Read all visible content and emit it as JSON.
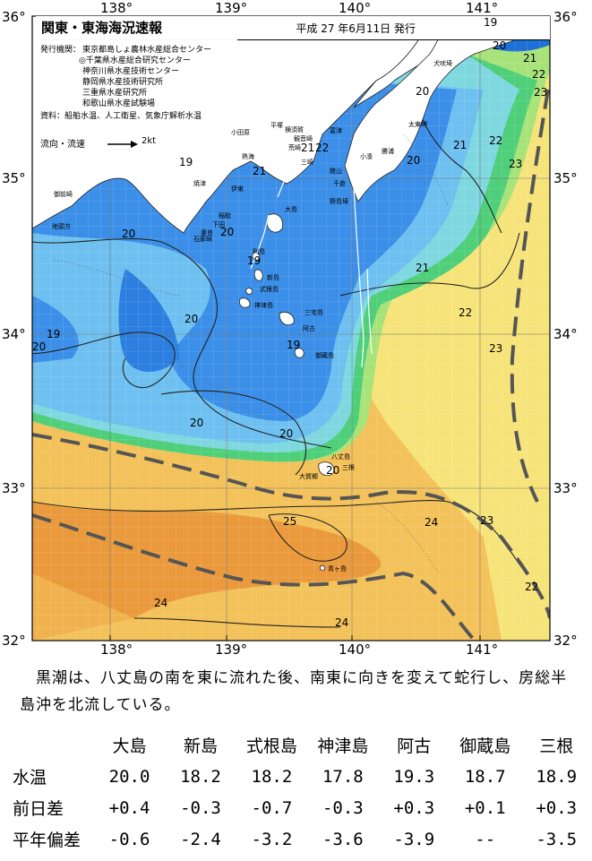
{
  "header": {
    "title": "関東・東海海況速報",
    "date": "平成 27 年6月11日 発行"
  },
  "info": {
    "issuer_label": "発行機関：",
    "issuers": [
      "東京都島しょ農林水産総合センター",
      "◎千葉県水産総合研究センター",
      "神奈川県水産技術センター",
      "静岡県水産技術研究所",
      "三重県水産研究所",
      "和歌山県水産試験場"
    ],
    "source": "資料：船舶水温、人工衛星、気象庁解析水温",
    "legend_label": "流向・流速",
    "legend_value": "2kt"
  },
  "axes": {
    "lon_top": [
      "138°",
      "139°",
      "140°",
      "141°"
    ],
    "lon_bottom": [
      "138°",
      "139°",
      "140°",
      "141°"
    ],
    "lat_left": [
      "36°",
      "35°",
      "34°",
      "33°",
      "32°"
    ],
    "lat_right": [
      "36°",
      "35°",
      "34°",
      "33°",
      "32°"
    ]
  },
  "places": {
    "inubo": "犬吠埼",
    "taito": "太東岬",
    "katsuura": "勝浦",
    "kominato": "小湊",
    "odawara": "小田原",
    "hiratsuka": "平塚",
    "yokosuka": "横須賀",
    "tomiura": "富津",
    "kannonzaki": "観音崎",
    "arasaki": "荒崎",
    "misaki": "三崎",
    "tateyama": "館山",
    "chikura": "千倉",
    "nojima": "野島埼",
    "atami": "熱海",
    "ito": "伊東",
    "inatori": "稲取",
    "shimoda": "下田",
    "mera": "妻良",
    "irozaki": "石廊崎",
    "yaizu": "焼津",
    "omaezaki": "御前崎",
    "chikyu": "地頭方",
    "oshima": "大島",
    "toshima": "利島",
    "niijima": "新島",
    "shikine": "式根島",
    "kozu": "神津島",
    "miyake": "三宅島",
    "ako": "阿古",
    "mikura": "御蔵島",
    "hachijo": "八丈島",
    "mine": "三根",
    "okago": "大賀郷",
    "aogashima": "青ヶ島"
  },
  "isotherms": [
    {
      "id": "t1",
      "text": "19"
    },
    {
      "id": "t2",
      "text": "20"
    },
    {
      "id": "t3",
      "text": "20"
    },
    {
      "id": "t4",
      "text": "21"
    },
    {
      "id": "t5",
      "text": "22"
    },
    {
      "id": "t6",
      "text": "23"
    },
    {
      "id": "t7",
      "text": "21"
    },
    {
      "id": "t8",
      "text": "22"
    },
    {
      "id": "t9",
      "text": "23"
    },
    {
      "id": "t10",
      "text": "20"
    },
    {
      "id": "t11",
      "text": "21"
    },
    {
      "id": "t12",
      "text": "22"
    },
    {
      "id": "t13",
      "text": "21"
    },
    {
      "id": "t14",
      "text": "19"
    },
    {
      "id": "t15",
      "text": "20"
    },
    {
      "id": "t16",
      "text": "20"
    },
    {
      "id": "t17",
      "text": "19"
    },
    {
      "id": "t18",
      "text": "21"
    },
    {
      "id": "t19",
      "text": "22"
    },
    {
      "id": "t20",
      "text": "19"
    },
    {
      "id": "t21",
      "text": "20"
    },
    {
      "id": "t22",
      "text": "23"
    },
    {
      "id": "t23",
      "text": "20"
    },
    {
      "id": "t24",
      "text": "20"
    },
    {
      "id": "t25",
      "text": "20"
    },
    {
      "id": "t26",
      "text": "24"
    },
    {
      "id": "t27",
      "text": "23"
    },
    {
      "id": "t28",
      "text": "25"
    },
    {
      "id": "t29",
      "text": "22"
    },
    {
      "id": "t30",
      "text": "24"
    },
    {
      "id": "t31",
      "text": "24"
    },
    {
      "id": "t32",
      "text": "20"
    },
    {
      "id": "t33",
      "text": "19"
    }
  ],
  "description": "黒潮は、八丈島の南を東に流れた後、南東に向きを変えて蛇行し、房総半島沖を北流している。",
  "table": {
    "headers": [
      "",
      "大島",
      "新島",
      "式根島",
      "神津島",
      "阿古",
      "御蔵島",
      "三根"
    ],
    "rows": [
      {
        "label": "水温",
        "values": [
          "20.0",
          "18.2",
          "18.2",
          "17.8",
          "19.3",
          "18.7",
          "18.9"
        ]
      },
      {
        "label": "前日差",
        "values": [
          "+0.4",
          "-0.3",
          "-0.7",
          "-0.3",
          "+0.3",
          "+0.1",
          "+0.3"
        ]
      },
      {
        "label": "平年偏差",
        "values": [
          "-0.6",
          "-2.4",
          "-3.2",
          "-3.6",
          "-3.9",
          "--",
          "-3.5"
        ]
      }
    ]
  },
  "colors": {
    "deep_blue": "#1e6fd6",
    "mid_blue": "#3b8fe8",
    "light_blue": "#6ec0f0",
    "cyan": "#7fd8e0",
    "green": "#4fcf7a",
    "light_green": "#a8e37a",
    "yellow": "#f6e47a",
    "light_orange": "#f3c25a",
    "orange": "#ea9a3c",
    "land": "#ffffff"
  }
}
